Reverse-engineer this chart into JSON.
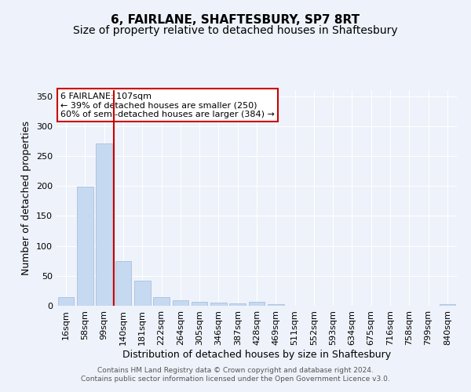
{
  "title": "6, FAIRLANE, SHAFTESBURY, SP7 8RT",
  "subtitle": "Size of property relative to detached houses in Shaftesbury",
  "xlabel": "Distribution of detached houses by size in Shaftesbury",
  "ylabel": "Number of detached properties",
  "categories": [
    "16sqm",
    "58sqm",
    "99sqm",
    "140sqm",
    "181sqm",
    "222sqm",
    "264sqm",
    "305sqm",
    "346sqm",
    "387sqm",
    "428sqm",
    "469sqm",
    "511sqm",
    "552sqm",
    "593sqm",
    "634sqm",
    "675sqm",
    "716sqm",
    "758sqm",
    "799sqm",
    "840sqm"
  ],
  "values": [
    15,
    199,
    271,
    75,
    42,
    14,
    9,
    6,
    5,
    4,
    6,
    2,
    0,
    0,
    0,
    0,
    0,
    0,
    0,
    0,
    3
  ],
  "bar_color": "#c5d9f1",
  "bar_edge_color": "#a0b8d8",
  "vline_x": 2.5,
  "vline_color": "#cc0000",
  "annotation_text": "6 FAIRLANE: 107sqm\n← 39% of detached houses are smaller (250)\n60% of semi-detached houses are larger (384) →",
  "annotation_box_color": "white",
  "annotation_box_edge": "#cc0000",
  "ylim": [
    0,
    360
  ],
  "yticks": [
    0,
    50,
    100,
    150,
    200,
    250,
    300,
    350
  ],
  "footer_text": "Contains HM Land Registry data © Crown copyright and database right 2024.\nContains public sector information licensed under the Open Government Licence v3.0.",
  "background_color": "#eef2fa",
  "title_fontsize": 11,
  "subtitle_fontsize": 10,
  "xlabel_fontsize": 9,
  "ylabel_fontsize": 9,
  "annotation_fontsize": 8,
  "footer_fontsize": 6.5,
  "tick_fontsize": 8
}
